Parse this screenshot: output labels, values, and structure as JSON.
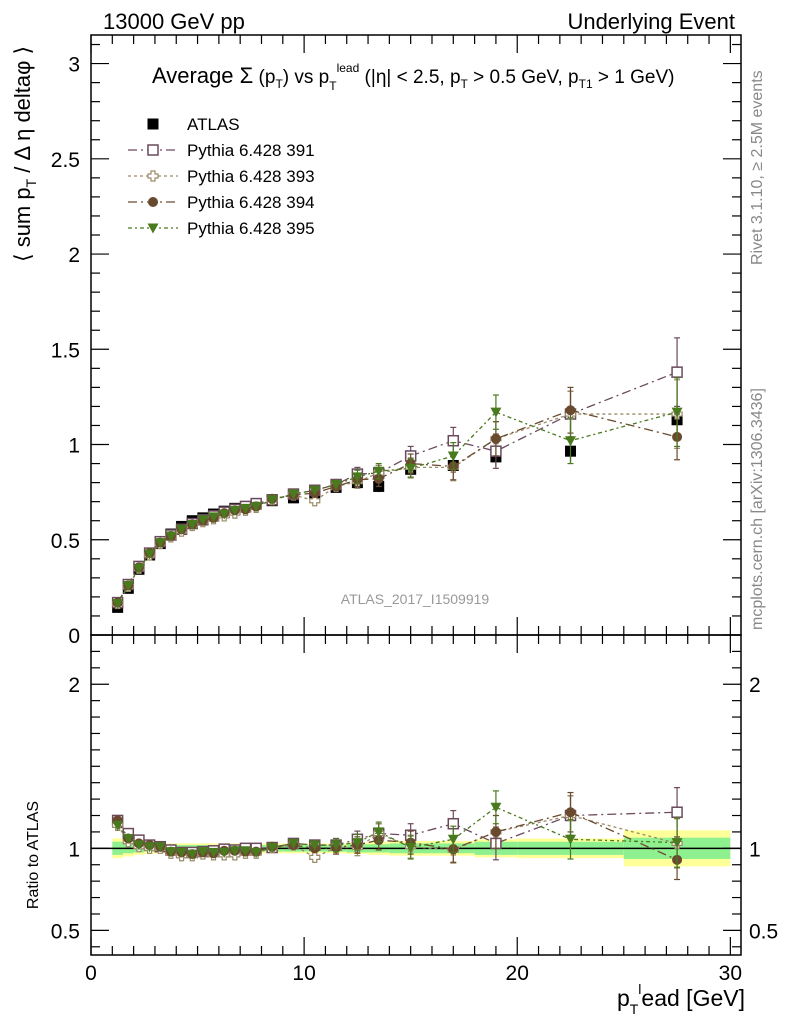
{
  "header": {
    "left": "13000 GeV pp",
    "right": "Underlying Event"
  },
  "title": "Average Σ(p_T) vs p_T^lead (|η| < 2.5, p_T > 0.5 GeV, p_T1 > 1 GeV)",
  "side_text": {
    "rivet": "Rivet 3.1.10, ≥ 2.5M events",
    "mcplots": "mcplots.cern.ch [arXiv:1306.3436]"
  },
  "watermark": "ATLAS_2017_I1509919",
  "colors": {
    "data": "#000000",
    "pythia391": "#6b4a5e",
    "pythia393": "#9a8a68",
    "pythia394": "#6a4a2e",
    "pythia395": "#4a7a1e",
    "band_outer": "#ffff99",
    "band_inner": "#8ff08f"
  },
  "chart_data": [
    {
      "type": "scatter",
      "panel": "main",
      "ylabel": "⟨ sum p_T / Δη deltaφ ⟩",
      "xlim": [
        0,
        30.5
      ],
      "ylim": [
        0,
        3.15
      ],
      "y_ticks": [
        0,
        0.5,
        1,
        1.5,
        2,
        2.5,
        3
      ],
      "y_tick_labels": [
        "0",
        "0.5",
        "1",
        "1.5",
        "2",
        "2.5",
        "3"
      ],
      "legend_position": "top-left",
      "x": [
        1.25,
        1.75,
        2.25,
        2.75,
        3.25,
        3.75,
        4.25,
        4.75,
        5.25,
        5.75,
        6.25,
        6.75,
        7.25,
        7.75,
        8.5,
        9.5,
        10.5,
        11.5,
        12.5,
        13.5,
        15,
        17,
        19,
        22.5,
        27.5
      ],
      "series": [
        {
          "name": "ATLAS",
          "marker": "filled-square",
          "y": [
            0.145,
            0.245,
            0.345,
            0.42,
            0.48,
            0.53,
            0.57,
            0.6,
            0.615,
            0.635,
            0.65,
            0.665,
            0.675,
            0.69,
            0.705,
            0.72,
            0.745,
            0.775,
            0.8,
            0.78,
            0.87,
            0.89,
            0.935,
            0.965,
            1.13
          ],
          "err": [
            0.01,
            0.01,
            0.01,
            0.01,
            0.01,
            0.01,
            0.01,
            0.01,
            0.01,
            0.01,
            0.01,
            0.01,
            0.01,
            0.01,
            0.01,
            0.01,
            0.015,
            0.02,
            0.025,
            0.03,
            0.035,
            0.04,
            0.05,
            0.06,
            0.08
          ]
        },
        {
          "name": "Pythia 6.428 391",
          "marker": "open-square",
          "y": [
            0.17,
            0.265,
            0.36,
            0.43,
            0.49,
            0.525,
            0.555,
            0.585,
            0.605,
            0.625,
            0.645,
            0.66,
            0.675,
            0.69,
            0.71,
            0.74,
            0.76,
            0.79,
            0.845,
            0.85,
            0.94,
            1.02,
            0.965,
            1.16,
            1.38
          ],
          "err": [
            0.01,
            0.01,
            0.01,
            0.01,
            0.01,
            0.01,
            0.01,
            0.01,
            0.01,
            0.01,
            0.01,
            0.01,
            0.01,
            0.015,
            0.015,
            0.02,
            0.025,
            0.03,
            0.035,
            0.04,
            0.05,
            0.07,
            0.09,
            0.12,
            0.18
          ]
        },
        {
          "name": "Pythia 6.428 393",
          "marker": "open-cross",
          "y": [
            0.165,
            0.255,
            0.35,
            0.42,
            0.48,
            0.515,
            0.545,
            0.575,
            0.595,
            0.61,
            0.625,
            0.64,
            0.655,
            0.67,
            0.71,
            0.735,
            0.705,
            0.78,
            0.805,
            0.85,
            0.88,
            0.88,
            1.03,
            1.16,
            1.16
          ],
          "err": [
            0.01,
            0.01,
            0.01,
            0.01,
            0.01,
            0.01,
            0.01,
            0.01,
            0.01,
            0.01,
            0.01,
            0.01,
            0.01,
            0.015,
            0.015,
            0.02,
            0.025,
            0.03,
            0.035,
            0.04,
            0.05,
            0.07,
            0.09,
            0.12,
            0.18
          ]
        },
        {
          "name": "Pythia 6.428 394",
          "marker": "filled-circle",
          "y": [
            0.17,
            0.26,
            0.355,
            0.43,
            0.485,
            0.52,
            0.555,
            0.58,
            0.6,
            0.615,
            0.64,
            0.655,
            0.66,
            0.675,
            0.715,
            0.735,
            0.745,
            0.78,
            0.815,
            0.82,
            0.9,
            0.885,
            1.03,
            1.18,
            1.04
          ],
          "err": [
            0.01,
            0.01,
            0.01,
            0.01,
            0.01,
            0.01,
            0.01,
            0.01,
            0.01,
            0.01,
            0.01,
            0.01,
            0.01,
            0.015,
            0.015,
            0.02,
            0.025,
            0.03,
            0.035,
            0.04,
            0.05,
            0.07,
            0.09,
            0.12,
            0.12
          ]
        },
        {
          "name": "Pythia 6.428 395",
          "marker": "filled-triangle-down",
          "y": [
            0.165,
            0.26,
            0.35,
            0.425,
            0.485,
            0.52,
            0.555,
            0.58,
            0.605,
            0.62,
            0.635,
            0.655,
            0.665,
            0.675,
            0.71,
            0.74,
            0.76,
            0.79,
            0.83,
            0.86,
            0.875,
            0.94,
            1.17,
            1.02,
            1.17
          ],
          "err": [
            0.01,
            0.01,
            0.01,
            0.01,
            0.01,
            0.01,
            0.01,
            0.01,
            0.01,
            0.01,
            0.01,
            0.01,
            0.01,
            0.015,
            0.015,
            0.02,
            0.025,
            0.03,
            0.035,
            0.04,
            0.05,
            0.07,
            0.09,
            0.12,
            0.18
          ]
        }
      ]
    },
    {
      "type": "scatter",
      "panel": "ratio",
      "ylabel": "Ratio to ATLAS",
      "xlabel": "p_T^lead [GeV]",
      "xlim": [
        0,
        30.5
      ],
      "ylim": [
        0.35,
        2.3
      ],
      "x_ticks": [
        0,
        10,
        20,
        30
      ],
      "x_tick_labels": [
        "0",
        "10",
        "20",
        "30"
      ],
      "y_ticks": [
        0.5,
        1,
        2
      ],
      "y_tick_labels": [
        "0.5",
        "1",
        "2"
      ],
      "uncertainty_band": {
        "x_edges": [
          1,
          1.5,
          2,
          2.5,
          3,
          3.5,
          4,
          4.5,
          5,
          5.5,
          6,
          6.5,
          7,
          7.5,
          8,
          9,
          10,
          11,
          12,
          13,
          14,
          16,
          18,
          20,
          25,
          30
        ],
        "inner": [
          0.04,
          0.03,
          0.025,
          0.02,
          0.02,
          0.02,
          0.02,
          0.02,
          0.02,
          0.02,
          0.02,
          0.02,
          0.02,
          0.02,
          0.02,
          0.02,
          0.02,
          0.02,
          0.025,
          0.025,
          0.03,
          0.03,
          0.04,
          0.04,
          0.065
        ],
        "outer": [
          0.06,
          0.05,
          0.04,
          0.035,
          0.03,
          0.03,
          0.03,
          0.03,
          0.03,
          0.03,
          0.03,
          0.03,
          0.03,
          0.03,
          0.03,
          0.03,
          0.03,
          0.03,
          0.035,
          0.04,
          0.045,
          0.045,
          0.055,
          0.06,
          0.11
        ]
      },
      "series": [
        {
          "name": "Pythia 6.428 391",
          "y": [
            1.17,
            1.09,
            1.05,
            1.02,
            1.01,
            0.99,
            0.975,
            0.975,
            0.98,
            0.985,
            0.995,
            0.99,
            1.0,
            1.0,
            1.005,
            1.03,
            1.02,
            1.02,
            1.055,
            1.09,
            1.08,
            1.15,
            1.03,
            1.2,
            1.22
          ],
          "err": [
            0.02,
            0.02,
            0.02,
            0.02,
            0.02,
            0.02,
            0.02,
            0.02,
            0.02,
            0.02,
            0.02,
            0.02,
            0.02,
            0.02,
            0.02,
            0.03,
            0.03,
            0.04,
            0.05,
            0.06,
            0.07,
            0.08,
            0.1,
            0.12,
            0.15
          ]
        },
        {
          "name": "Pythia 6.428 393",
          "y": [
            1.14,
            1.04,
            1.01,
            1.0,
            1.0,
            0.97,
            0.955,
            0.955,
            0.965,
            0.96,
            0.96,
            0.96,
            0.97,
            0.97,
            1.005,
            1.02,
            0.945,
            1.005,
            1.005,
            1.09,
            1.01,
            0.99,
            1.1,
            1.2,
            1.03
          ],
          "err": [
            0.02,
            0.02,
            0.02,
            0.02,
            0.02,
            0.02,
            0.02,
            0.02,
            0.02,
            0.02,
            0.02,
            0.02,
            0.02,
            0.02,
            0.02,
            0.03,
            0.03,
            0.04,
            0.05,
            0.06,
            0.07,
            0.08,
            0.1,
            0.12,
            0.15
          ]
        },
        {
          "name": "Pythia 6.428 394",
          "y": [
            1.17,
            1.06,
            1.03,
            1.02,
            1.01,
            0.98,
            0.975,
            0.965,
            0.975,
            0.97,
            0.985,
            0.985,
            0.98,
            0.98,
            1.01,
            1.02,
            1.0,
            1.005,
            1.02,
            1.05,
            1.035,
            0.995,
            1.1,
            1.22,
            0.93
          ],
          "err": [
            0.02,
            0.02,
            0.02,
            0.02,
            0.02,
            0.02,
            0.02,
            0.02,
            0.02,
            0.02,
            0.02,
            0.02,
            0.02,
            0.02,
            0.02,
            0.03,
            0.03,
            0.04,
            0.05,
            0.06,
            0.07,
            0.08,
            0.1,
            0.12,
            0.12
          ]
        },
        {
          "name": "Pythia 6.428 395",
          "y": [
            1.14,
            1.06,
            1.02,
            1.01,
            1.01,
            0.98,
            0.975,
            0.965,
            0.98,
            0.975,
            0.975,
            0.985,
            0.985,
            0.975,
            1.005,
            1.03,
            1.02,
            1.02,
            1.035,
            1.1,
            1.005,
            1.055,
            1.25,
            1.055,
            1.035
          ],
          "err": [
            0.02,
            0.02,
            0.02,
            0.02,
            0.02,
            0.02,
            0.02,
            0.02,
            0.02,
            0.02,
            0.02,
            0.02,
            0.02,
            0.02,
            0.02,
            0.03,
            0.03,
            0.04,
            0.05,
            0.06,
            0.07,
            0.08,
            0.1,
            0.12,
            0.15
          ]
        }
      ]
    }
  ]
}
